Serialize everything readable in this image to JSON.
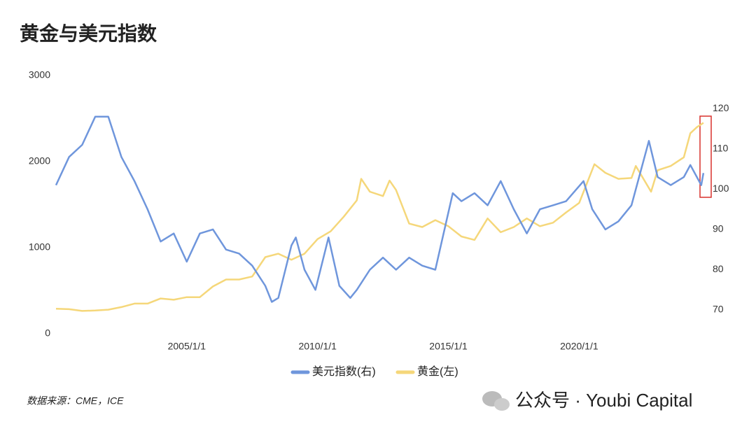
{
  "chart_data": {
    "type": "line",
    "title": "黄金与美元指数",
    "source": "数据来源：CME，ICE",
    "watermark": "公众号 · Youbi Capital",
    "xlim": [
      "2000/1/1",
      "2024/11/1"
    ],
    "xticks": [
      "2005/1/1",
      "2010/1/1",
      "2015/1/1",
      "2020/1/1"
    ],
    "ylim": [
      0,
      3000
    ],
    "yticks": [
      0,
      1000,
      2000,
      3000
    ],
    "y2lim": [
      64.1,
      128.2
    ],
    "y2ticks": [
      70,
      80,
      90,
      100,
      110,
      120
    ],
    "legend": "bottom",
    "series": [
      {
        "name": "美元指数(右)",
        "color": "#6f96dc",
        "axis": "y2",
        "x": [
          "2000/1/1",
          "2000/7/1",
          "2001/1/1",
          "2001/7/1",
          "2002/1/1",
          "2002/7/1",
          "2003/1/1",
          "2003/7/1",
          "2004/1/1",
          "2004/7/1",
          "2005/1/1",
          "2005/7/1",
          "2006/1/1",
          "2006/7/1",
          "2007/1/1",
          "2007/7/1",
          "2008/1/1",
          "2008/4/1",
          "2008/7/1",
          "2009/1/1",
          "2009/3/1",
          "2009/7/1",
          "2009/12/1",
          "2010/6/1",
          "2010/11/1",
          "2011/4/1",
          "2011/7/1",
          "2012/1/1",
          "2012/7/1",
          "2013/1/1",
          "2013/7/1",
          "2014/1/1",
          "2014/7/1",
          "2015/3/1",
          "2015/7/1",
          "2016/1/1",
          "2016/7/1",
          "2017/1/1",
          "2017/7/1",
          "2018/1/1",
          "2018/7/1",
          "2019/1/1",
          "2019/7/1",
          "2020/3/1",
          "2020/7/1",
          "2021/1/1",
          "2021/7/1",
          "2022/1/1",
          "2022/9/1",
          "2023/1/1",
          "2023/7/1",
          "2024/1/1",
          "2024/4/1",
          "2024/9/1",
          "2024/10/1"
        ],
        "values": [
          101,
          108,
          111,
          118,
          118,
          108,
          102,
          95,
          87,
          89,
          82,
          89,
          90,
          85,
          84,
          81,
          76,
          72,
          73,
          86,
          88,
          80,
          75,
          88,
          76,
          73,
          75,
          80,
          83,
          80,
          83,
          81,
          80,
          99,
          97,
          99,
          96,
          102,
          95,
          89,
          95,
          96,
          97,
          102,
          95,
          90,
          92,
          96,
          112,
          103,
          101,
          103,
          106,
          101,
          104
        ]
      },
      {
        "name": "黄金(左)",
        "color": "#f5d77a",
        "axis": "y",
        "x": [
          "2000/1/1",
          "2000/7/1",
          "2001/1/1",
          "2001/7/1",
          "2002/1/1",
          "2002/7/1",
          "2003/1/1",
          "2003/7/1",
          "2004/1/1",
          "2004/7/1",
          "2005/1/1",
          "2005/7/1",
          "2006/1/1",
          "2006/7/1",
          "2007/1/1",
          "2007/7/1",
          "2008/1/1",
          "2008/7/1",
          "2009/1/1",
          "2009/7/1",
          "2010/1/1",
          "2010/7/1",
          "2011/1/1",
          "2011/7/1",
          "2011/9/1",
          "2012/1/1",
          "2012/7/1",
          "2012/10/1",
          "2013/1/1",
          "2013/7/1",
          "2014/1/1",
          "2014/7/1",
          "2015/1/1",
          "2015/7/1",
          "2016/1/1",
          "2016/7/1",
          "2017/1/1",
          "2017/7/1",
          "2018/1/1",
          "2018/7/1",
          "2019/1/1",
          "2019/7/1",
          "2020/1/1",
          "2020/8/1",
          "2021/1/1",
          "2021/7/1",
          "2022/1/1",
          "2022/3/1",
          "2022/10/1",
          "2023/1/1",
          "2023/7/1",
          "2024/1/1",
          "2024/4/1",
          "2024/7/1",
          "2024/10/1"
        ],
        "values": [
          290,
          285,
          265,
          270,
          280,
          310,
          350,
          350,
          410,
          395,
          425,
          425,
          550,
          630,
          630,
          665,
          890,
          930,
          860,
          930,
          1100,
          1190,
          1360,
          1550,
          1800,
          1650,
          1600,
          1780,
          1670,
          1280,
          1240,
          1320,
          1250,
          1130,
          1090,
          1340,
          1180,
          1240,
          1340,
          1250,
          1290,
          1410,
          1520,
          1970,
          1870,
          1800,
          1810,
          1950,
          1650,
          1900,
          1950,
          2050,
          2330,
          2400,
          2450
        ]
      }
    ]
  }
}
